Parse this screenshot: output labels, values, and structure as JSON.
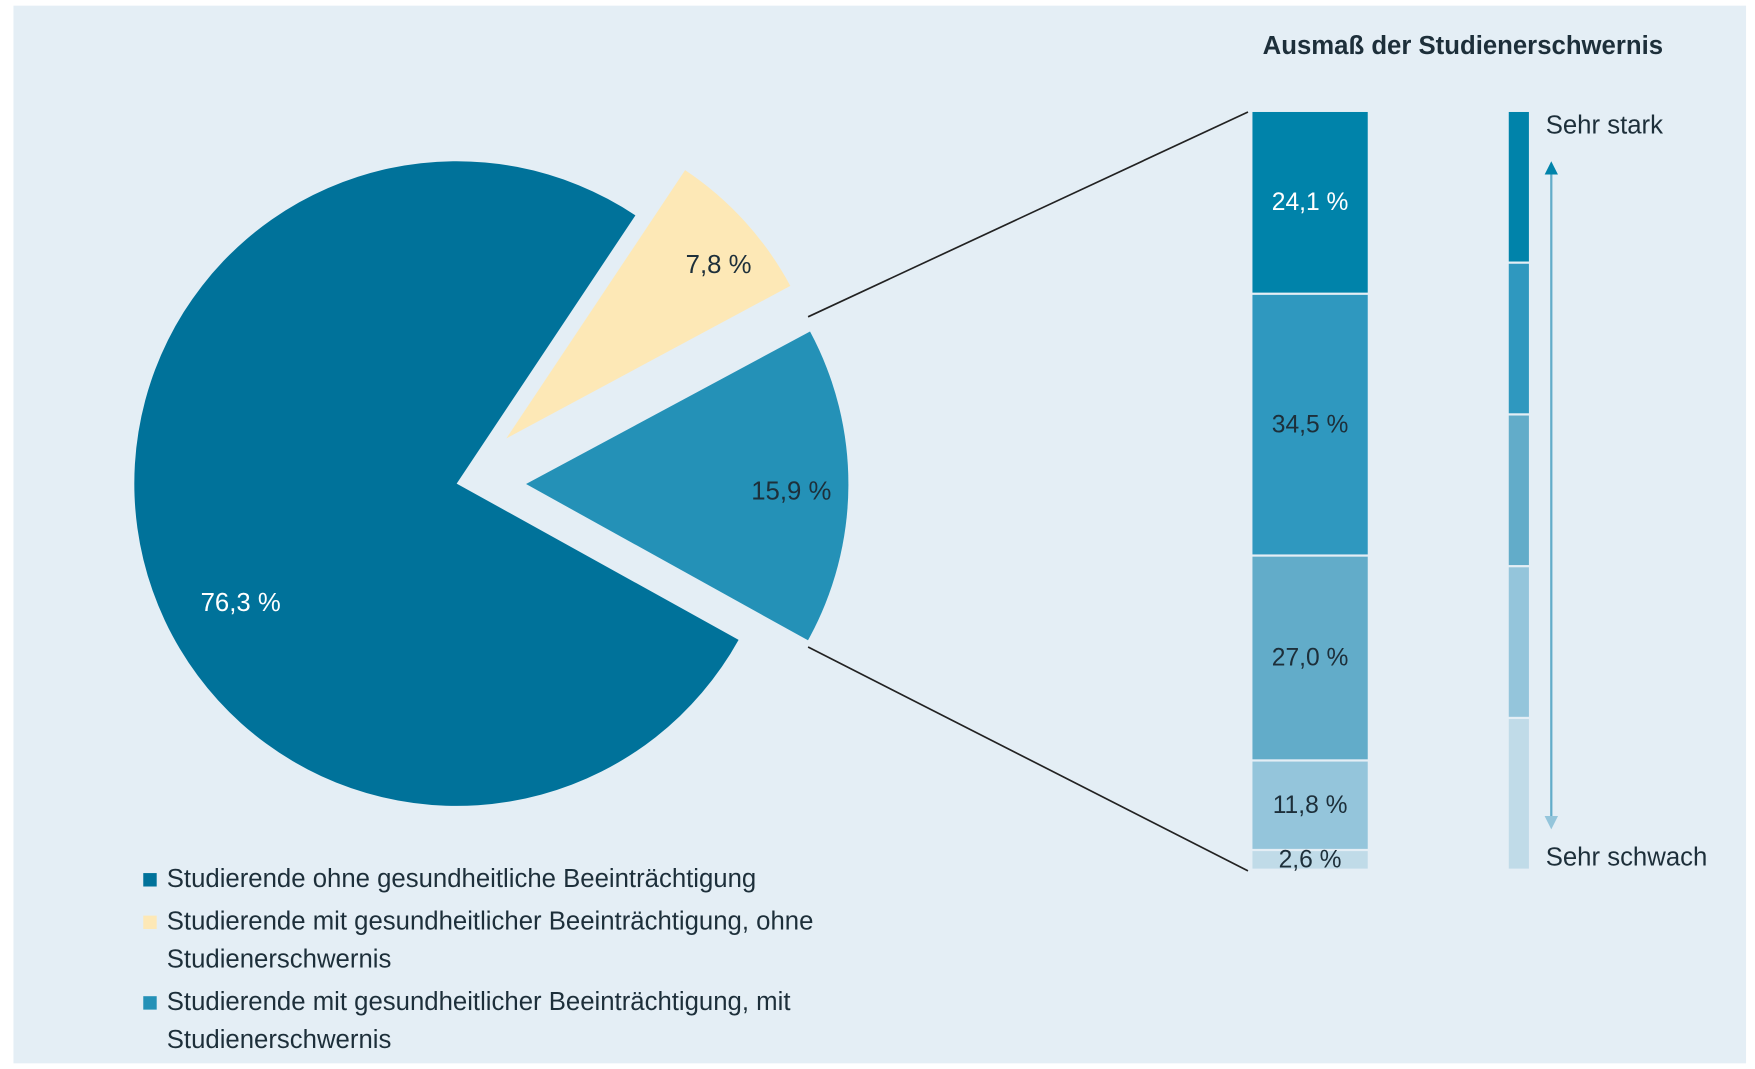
{
  "chart_data": [
    {
      "type": "pie",
      "categories": [
        "Studierende ohne gesundheitliche Beeinträchtigung",
        "Studierende mit gesundheitlicher Beeinträchtigung, ohne Studienerschwernis",
        "Studierende mit gesundheitlicher Beeinträchtigung, mit Studienerschwernis"
      ],
      "values": [
        76.3,
        7.8,
        15.9
      ],
      "value_labels": [
        "76,3 %",
        "7,8 %",
        "15,9 %"
      ],
      "colors": [
        "#00729a",
        "#fde8b6",
        "#2491b7"
      ]
    },
    {
      "type": "bar",
      "title": "Ausmaß der Studienerschwernis",
      "values": [
        24.1,
        34.5,
        27.0,
        11.8,
        2.6
      ],
      "value_labels": [
        "24,1 %",
        "34,5 %",
        "27,0 %",
        "11,8 %",
        "2,6 %"
      ],
      "colors": [
        "#0083aa",
        "#2f98bf",
        "#62acc9",
        "#94c5db",
        "#c0dbe8"
      ],
      "annotations": [
        "Sehr stark",
        "Sehr schwach"
      ]
    }
  ]
}
